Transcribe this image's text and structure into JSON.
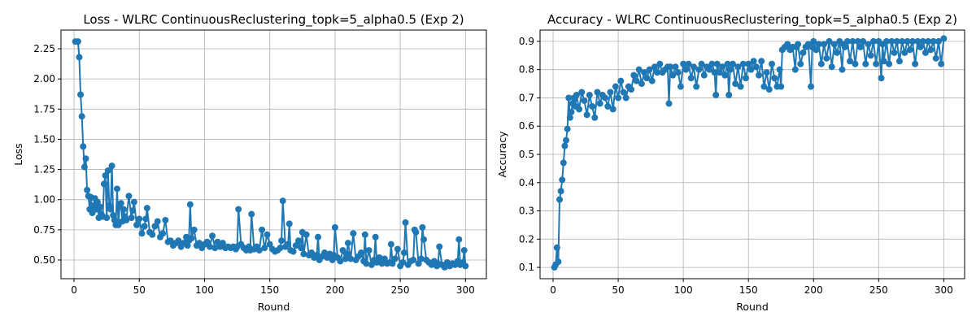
{
  "chart_data": [
    {
      "type": "line",
      "title": "Loss - WLRC ContinuousReclustering_topk=5_alpha0.5 (Exp 2)",
      "xlabel": "Round",
      "ylabel": "Loss",
      "xlim": [
        -10,
        316
      ],
      "ylim": [
        0.345,
        2.405
      ],
      "xticks": [
        0,
        50,
        100,
        150,
        200,
        250,
        300
      ],
      "yticks": [
        0.5,
        0.75,
        1.0,
        1.25,
        1.5,
        1.75,
        2.0,
        2.25
      ],
      "ytick_labels": [
        "0.50",
        "0.75",
        "1.00",
        "1.25",
        "1.50",
        "1.75",
        "2.00",
        "2.25"
      ],
      "grid": true,
      "marker": "circle",
      "color": "#1f77b4",
      "series": [
        {
          "x": [
            1,
            3,
            4,
            5,
            6,
            7,
            8,
            9,
            10,
            11,
            12,
            13,
            14,
            15,
            16,
            17,
            18,
            19,
            20,
            21,
            22,
            23,
            24,
            25,
            26,
            27,
            28,
            29,
            30,
            31,
            32,
            33,
            34,
            35,
            36,
            37,
            38,
            39,
            40,
            42,
            44,
            45,
            46,
            48,
            50,
            52,
            54,
            55,
            56,
            58,
            60,
            62,
            64,
            66,
            68,
            70,
            72,
            74,
            76,
            78,
            80,
            82,
            84,
            86,
            87,
            88,
            89,
            90,
            92,
            94,
            96,
            98,
            100,
            102,
            104,
            106,
            108,
            110,
            112,
            114,
            116,
            118,
            120,
            122,
            124,
            125,
            126,
            128,
            130,
            132,
            134,
            135,
            136,
            138,
            140,
            142,
            144,
            146,
            148,
            150,
            152,
            154,
            156,
            158,
            159,
            160,
            162,
            164,
            165,
            166,
            168,
            170,
            172,
            174,
            175,
            176,
            178,
            180,
            182,
            184,
            186,
            187,
            188,
            190,
            192,
            194,
            196,
            198,
            199,
            200,
            202,
            204,
            206,
            208,
            209,
            210,
            212,
            214,
            216,
            218,
            220,
            222,
            223,
            224,
            226,
            228,
            230,
            231,
            232,
            234,
            236,
            238,
            240,
            242,
            243,
            244,
            246,
            248,
            250,
            252,
            253,
            254,
            256,
            258,
            260,
            261,
            262,
            264,
            266,
            267,
            268,
            270,
            272,
            274,
            276,
            278,
            279,
            280,
            282,
            284,
            286,
            288,
            290,
            292,
            294,
            295,
            296,
            298,
            299,
            300
          ],
          "y": [
            2.31,
            2.31,
            2.18,
            1.87,
            1.69,
            1.44,
            1.27,
            1.34,
            1.08,
            1.03,
            0.92,
            1.02,
            0.89,
            0.95,
            1.01,
            0.92,
            0.98,
            0.85,
            0.94,
            0.88,
            0.86,
            1.13,
            1.2,
            0.85,
            1.24,
            0.95,
            0.92,
            1.28,
            0.87,
            0.83,
            0.79,
            1.09,
            0.79,
            0.95,
            0.97,
            0.82,
            0.92,
            0.86,
            0.83,
            1.03,
            0.85,
            0.91,
            0.98,
            0.79,
            0.84,
            0.72,
            0.78,
            0.84,
            0.93,
            0.73,
            0.71,
            0.78,
            0.82,
            0.69,
            0.72,
            0.83,
            0.65,
            0.66,
            0.62,
            0.64,
            0.66,
            0.61,
            0.64,
            0.69,
            0.62,
            0.66,
            0.96,
            0.68,
            0.75,
            0.62,
            0.64,
            0.6,
            0.63,
            0.65,
            0.61,
            0.7,
            0.6,
            0.65,
            0.61,
            0.64,
            0.6,
            0.61,
            0.6,
            0.61,
            0.59,
            0.61,
            0.92,
            0.63,
            0.6,
            0.58,
            0.61,
            0.58,
            0.88,
            0.59,
            0.61,
            0.58,
            0.75,
            0.6,
            0.71,
            0.63,
            0.59,
            0.57,
            0.58,
            0.6,
            0.66,
            0.99,
            0.61,
            0.63,
            0.8,
            0.58,
            0.57,
            0.62,
            0.66,
            0.6,
            0.73,
            0.55,
            0.71,
            0.54,
            0.56,
            0.52,
            0.54,
            0.69,
            0.5,
            0.53,
            0.56,
            0.52,
            0.55,
            0.5,
            0.54,
            0.77,
            0.52,
            0.49,
            0.58,
            0.51,
            0.55,
            0.64,
            0.51,
            0.72,
            0.5,
            0.53,
            0.56,
            0.49,
            0.71,
            0.47,
            0.58,
            0.46,
            0.5,
            0.69,
            0.48,
            0.52,
            0.47,
            0.51,
            0.47,
            0.48,
            0.63,
            0.47,
            0.51,
            0.59,
            0.45,
            0.48,
            0.56,
            0.81,
            0.46,
            0.49,
            0.5,
            0.75,
            0.73,
            0.47,
            0.51,
            0.77,
            0.67,
            0.5,
            0.48,
            0.46,
            0.49,
            0.45,
            0.47,
            0.61,
            0.46,
            0.44,
            0.48,
            0.45,
            0.47,
            0.46,
            0.49,
            0.67,
            0.46,
            0.48,
            0.58,
            0.45
          ]
        }
      ]
    },
    {
      "type": "line",
      "title": "Accuracy - WLRC ContinuousReclustering_topk=5_alpha0.5 (Exp 2)",
      "xlabel": "Round",
      "ylabel": "Accuracy",
      "xlim": [
        -10,
        316
      ],
      "ylim": [
        0.06,
        0.94
      ],
      "xticks": [
        0,
        50,
        100,
        150,
        200,
        250,
        300
      ],
      "yticks": [
        0.1,
        0.2,
        0.3,
        0.4,
        0.5,
        0.6,
        0.7,
        0.8,
        0.9
      ],
      "ytick_labels": [
        "0.1",
        "0.2",
        "0.3",
        "0.4",
        "0.5",
        "0.6",
        "0.7",
        "0.8",
        "0.9"
      ],
      "grid": true,
      "marker": "circle",
      "color": "#1f77b4",
      "series": [
        {
          "x": [
            1,
            2,
            3,
            4,
            5,
            6,
            7,
            8,
            9,
            10,
            11,
            12,
            13,
            14,
            15,
            16,
            17,
            18,
            20,
            22,
            24,
            26,
            28,
            30,
            32,
            34,
            36,
            38,
            40,
            42,
            44,
            46,
            48,
            50,
            52,
            54,
            56,
            58,
            60,
            62,
            64,
            66,
            68,
            70,
            72,
            74,
            76,
            78,
            80,
            82,
            84,
            86,
            88,
            89,
            90,
            92,
            94,
            96,
            98,
            100,
            102,
            104,
            106,
            108,
            110,
            112,
            114,
            116,
            118,
            120,
            122,
            124,
            125,
            126,
            128,
            130,
            132,
            134,
            135,
            136,
            138,
            140,
            142,
            144,
            146,
            148,
            150,
            152,
            154,
            156,
            158,
            160,
            162,
            164,
            166,
            168,
            170,
            172,
            174,
            175,
            176,
            178,
            180,
            182,
            184,
            186,
            187,
            188,
            190,
            192,
            194,
            196,
            198,
            199,
            200,
            202,
            204,
            206,
            208,
            210,
            212,
            214,
            216,
            218,
            220,
            222,
            223,
            224,
            226,
            228,
            230,
            232,
            234,
            236,
            238,
            240,
            242,
            244,
            246,
            248,
            250,
            252,
            253,
            254,
            256,
            258,
            260,
            262,
            264,
            266,
            268,
            270,
            272,
            274,
            276,
            278,
            280,
            282,
            284,
            286,
            288,
            290,
            292,
            294,
            296,
            298,
            300
          ],
          "y": [
            0.1,
            0.11,
            0.17,
            0.12,
            0.34,
            0.37,
            0.41,
            0.47,
            0.53,
            0.55,
            0.59,
            0.7,
            0.63,
            0.65,
            0.68,
            0.7,
            0.67,
            0.71,
            0.66,
            0.72,
            0.69,
            0.64,
            0.71,
            0.67,
            0.63,
            0.72,
            0.68,
            0.71,
            0.7,
            0.67,
            0.72,
            0.66,
            0.74,
            0.7,
            0.76,
            0.72,
            0.7,
            0.74,
            0.73,
            0.78,
            0.76,
            0.8,
            0.75,
            0.79,
            0.77,
            0.8,
            0.76,
            0.81,
            0.79,
            0.82,
            0.79,
            0.8,
            0.81,
            0.68,
            0.81,
            0.78,
            0.81,
            0.79,
            0.74,
            0.82,
            0.8,
            0.82,
            0.77,
            0.81,
            0.74,
            0.8,
            0.82,
            0.78,
            0.81,
            0.8,
            0.82,
            0.79,
            0.71,
            0.82,
            0.79,
            0.81,
            0.78,
            0.82,
            0.71,
            0.8,
            0.82,
            0.75,
            0.81,
            0.74,
            0.82,
            0.77,
            0.82,
            0.8,
            0.83,
            0.81,
            0.78,
            0.83,
            0.74,
            0.79,
            0.73,
            0.82,
            0.77,
            0.74,
            0.8,
            0.74,
            0.87,
            0.88,
            0.89,
            0.87,
            0.88,
            0.8,
            0.88,
            0.89,
            0.82,
            0.86,
            0.88,
            0.89,
            0.74,
            0.88,
            0.9,
            0.87,
            0.89,
            0.82,
            0.89,
            0.84,
            0.9,
            0.81,
            0.89,
            0.86,
            0.9,
            0.8,
            0.89,
            0.88,
            0.9,
            0.83,
            0.9,
            0.82,
            0.9,
            0.88,
            0.9,
            0.82,
            0.89,
            0.85,
            0.9,
            0.82,
            0.9,
            0.77,
            0.89,
            0.83,
            0.9,
            0.82,
            0.9,
            0.86,
            0.9,
            0.83,
            0.9,
            0.86,
            0.9,
            0.87,
            0.9,
            0.82,
            0.9,
            0.88,
            0.9,
            0.86,
            0.9,
            0.87,
            0.9,
            0.84,
            0.9,
            0.82,
            0.91
          ]
        }
      ]
    }
  ]
}
